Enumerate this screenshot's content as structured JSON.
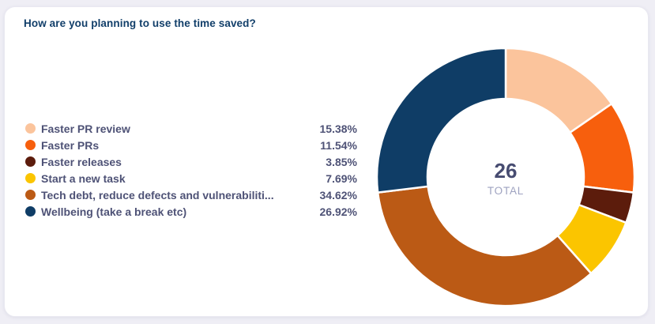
{
  "page": {
    "background_color": "#EFEEF5",
    "card_color": "#FFFFFF"
  },
  "chart_data": {
    "type": "pie",
    "subtype": "donut",
    "title": "How are you planning to use the time saved?",
    "title_color": "#123F6A",
    "total_value": "26",
    "total_label": "TOTAL",
    "legend_position": "left",
    "start_angle_deg": 0,
    "direction": "clockwise",
    "inner_radius_ratio": 0.61,
    "series": [
      {
        "label": "Faster PR review",
        "value_pct": 15.38,
        "display_pct": "15.38%",
        "color": "#FBC49C"
      },
      {
        "label": "Faster PRs",
        "value_pct": 11.54,
        "display_pct": "11.54%",
        "color": "#F75F0D"
      },
      {
        "label": "Faster releases",
        "value_pct": 3.85,
        "display_pct": "3.85%",
        "color": "#5C1C0C"
      },
      {
        "label": "Start a new task",
        "value_pct": 7.69,
        "display_pct": "7.69%",
        "color": "#FBC500"
      },
      {
        "label": "Tech debt, reduce defects and vulnerabiliti...",
        "value_pct": 34.62,
        "display_pct": "34.62%",
        "color": "#BB5A15"
      },
      {
        "label": "Wellbeing (take a break etc)",
        "value_pct": 26.92,
        "display_pct": "26.92%",
        "color": "#0F3D66"
      }
    ]
  }
}
